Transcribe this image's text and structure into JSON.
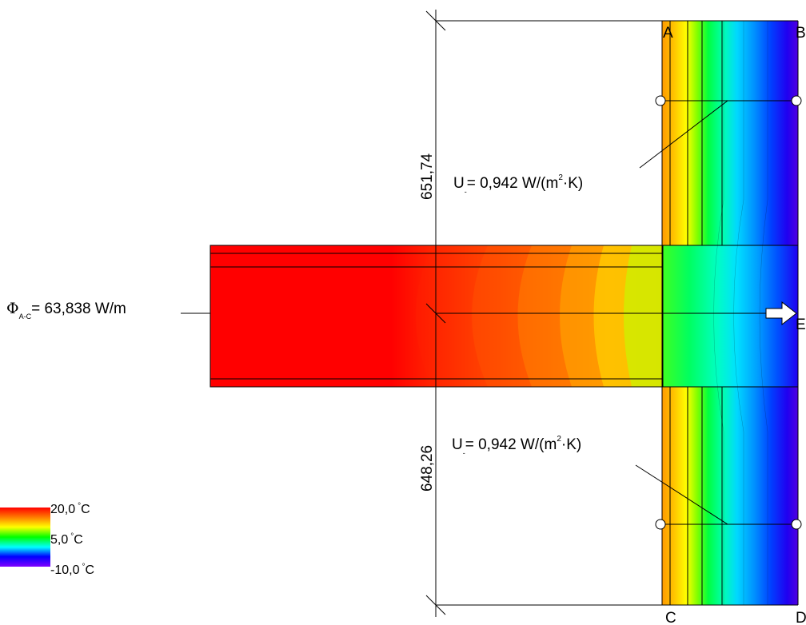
{
  "labels": {
    "corner_a": "A",
    "corner_b": "B",
    "corner_c": "C",
    "corner_d": "D",
    "corner_e": "E"
  },
  "dimensions": {
    "upper": "651,74",
    "lower": "648,26"
  },
  "u_value_top": {
    "symbol": "U",
    "subscript": "-",
    "value": "= 0,942 W/(m",
    "superscript": "2",
    "unit_end": "·K)"
  },
  "u_value_bottom": {
    "symbol": "U",
    "subscript": "-",
    "value": "= 0,942 W/(m",
    "superscript": "2",
    "unit_end": "·K)"
  },
  "heat_flow": {
    "symbol": "Φ",
    "subscript": "A-C",
    "value": "= 63,838 W/m"
  },
  "legend": {
    "max": "20,0",
    "mid": "5,0",
    "min": "-10,0",
    "deg": "°",
    "unit": "C",
    "colors": [
      "#ff0000",
      "#ff8000",
      "#ffff00",
      "#00ff00",
      "#00ffff",
      "#0000ff",
      "#8000ff"
    ]
  }
}
